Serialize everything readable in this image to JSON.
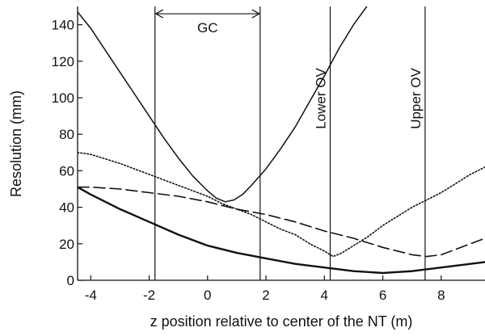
{
  "chart_data": {
    "type": "line",
    "xlabel": "z position relative to center of the NT (m)",
    "ylabel": "Resolution (mm)",
    "xlim": [
      -4.45,
      9.5
    ],
    "ylim": [
      0,
      150
    ],
    "xticks": [
      -4,
      -2,
      0,
      2,
      4,
      6,
      8
    ],
    "xtick_labels": [
      "-4",
      "-2",
      "0",
      "2",
      "4",
      "6",
      "8"
    ],
    "yticks": [
      0,
      20,
      40,
      60,
      80,
      100,
      120,
      140
    ],
    "ytick_labels": [
      "0",
      "20",
      "40",
      "60",
      "80",
      "100",
      "120",
      "140"
    ],
    "grid": false,
    "legend": "none",
    "vertical_lines": [
      {
        "x": -1.8,
        "label": ""
      },
      {
        "x": 1.8,
        "label": ""
      },
      {
        "x": 4.2,
        "label": "Lower OV"
      },
      {
        "x": 7.45,
        "label": "Upper OV"
      }
    ],
    "gc_annotation": {
      "label": "GC",
      "x_from": -1.8,
      "x_to": 1.8,
      "y": 146
    },
    "series": [
      {
        "style": "solid-thin",
        "x": [
          -4.45,
          -4.0,
          -3.5,
          -3.0,
          -2.5,
          -2.0,
          -1.5,
          -1.0,
          -0.5,
          0.0,
          0.3,
          0.6,
          0.9,
          1.2,
          1.5,
          2.0,
          2.5,
          3.0,
          3.5,
          4.0,
          4.5,
          5.0,
          5.45
        ],
        "y": [
          147,
          138,
          126,
          114,
          102,
          90,
          78,
          67,
          57,
          49,
          45,
          43,
          44,
          47,
          52,
          61,
          72,
          84,
          98,
          112,
          127,
          140,
          150
        ]
      },
      {
        "style": "dotted",
        "x": [
          -4.45,
          -4.0,
          -3.0,
          -2.0,
          -1.0,
          0.0,
          0.5,
          1.0,
          1.5,
          2.0,
          2.5,
          3.0,
          3.5,
          4.0,
          4.3,
          4.6,
          5.0,
          5.5,
          6.0,
          6.5,
          7.0,
          7.5,
          8.0,
          8.5,
          9.0,
          9.5
        ],
        "y": [
          70,
          69,
          64,
          58,
          52,
          46,
          42,
          39,
          36,
          32,
          28,
          25,
          20,
          16,
          13,
          15,
          19,
          24,
          30,
          35,
          40,
          44,
          48,
          53,
          58,
          62
        ]
      },
      {
        "style": "dashed",
        "x": [
          -4.45,
          -4.0,
          -3.0,
          -2.0,
          -1.0,
          0.0,
          1.0,
          2.0,
          3.0,
          4.0,
          5.0,
          6.0,
          6.5,
          7.0,
          7.5,
          8.0,
          8.5,
          9.0,
          9.5
        ],
        "y": [
          51,
          51,
          50,
          48,
          46,
          43,
          39,
          36,
          32,
          27,
          23,
          18,
          16,
          14,
          13,
          14,
          17,
          20,
          23
        ]
      },
      {
        "style": "solid-thick",
        "x": [
          -4.45,
          -4.0,
          -3.0,
          -2.0,
          -1.0,
          0.0,
          1.0,
          2.0,
          3.0,
          4.0,
          5.0,
          5.5,
          6.0,
          6.5,
          7.0,
          7.5,
          8.0,
          8.5,
          9.0,
          9.5
        ],
        "y": [
          51,
          47,
          39,
          32,
          25,
          19,
          15,
          12,
          9,
          7,
          5,
          4.5,
          4,
          4.5,
          5,
          6,
          7,
          8,
          9,
          10
        ]
      }
    ]
  }
}
